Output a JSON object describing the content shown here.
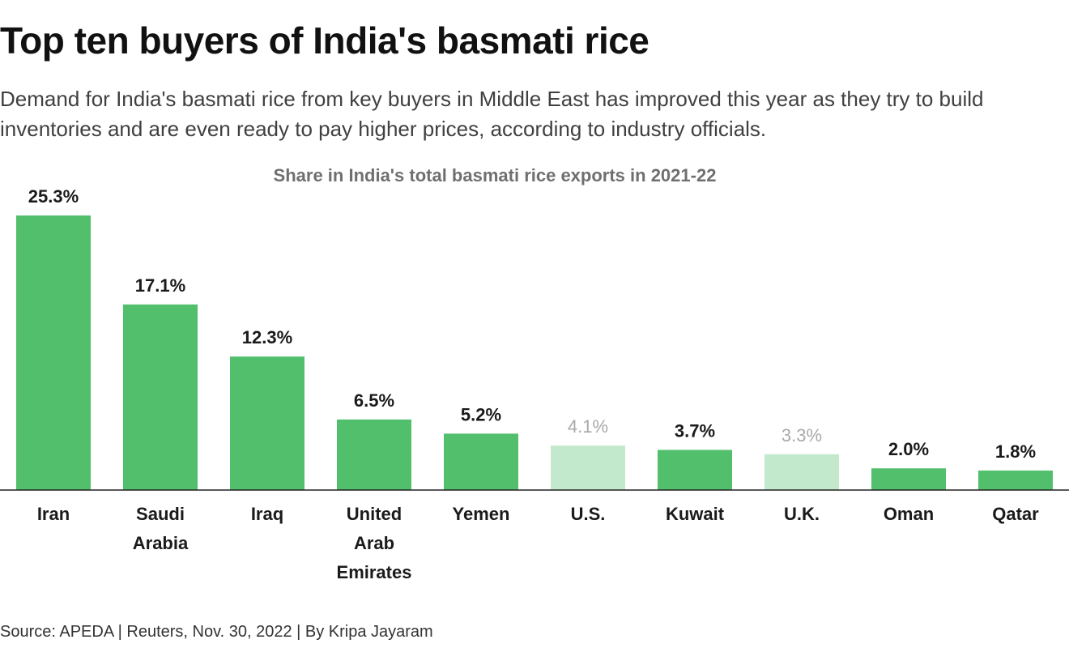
{
  "header": {
    "title": "Top ten buyers of India's basmati rice",
    "subtitle": "Demand for India's basmati rice from key buyers in Middle East has improved this year as they try to build inventories and are even ready to pay higher prices, according to industry officials."
  },
  "footer": {
    "source": "Source: APEDA | Reuters, Nov. 30, 2022 | By Kripa Jayaram"
  },
  "colors": {
    "bar_primary": "#52bf6d",
    "bar_muted": "#c3e9cc",
    "label_primary": "#1a1a1a",
    "label_muted": "#a9a9a9",
    "chart_title": "#6f6f6f",
    "baseline": "#222222"
  },
  "chart_data": {
    "type": "bar",
    "title": "Share in India's total basmati rice exports in 2021-22",
    "xlabel": "",
    "ylabel": "",
    "ylim": [
      0,
      25.3
    ],
    "grid": false,
    "legend": "none",
    "unit": "%",
    "categories": [
      [
        "Iran"
      ],
      [
        "Saudi",
        "Arabia"
      ],
      [
        "Iraq"
      ],
      [
        "United",
        "Arab",
        "Emirates"
      ],
      [
        "Yemen"
      ],
      [
        "U.S."
      ],
      [
        "Kuwait"
      ],
      [
        "U.K."
      ],
      [
        "Oman"
      ],
      [
        "Qatar"
      ]
    ],
    "values": [
      25.3,
      17.1,
      12.3,
      6.5,
      5.2,
      4.1,
      3.7,
      3.3,
      2.0,
      1.8
    ],
    "value_labels": [
      "25.3%",
      "17.1%",
      "12.3%",
      "6.5%",
      "5.2%",
      "4.1%",
      "3.7%",
      "3.3%",
      "2.0%",
      "1.8%"
    ],
    "muted": [
      false,
      false,
      false,
      false,
      false,
      true,
      false,
      true,
      false,
      false
    ]
  }
}
